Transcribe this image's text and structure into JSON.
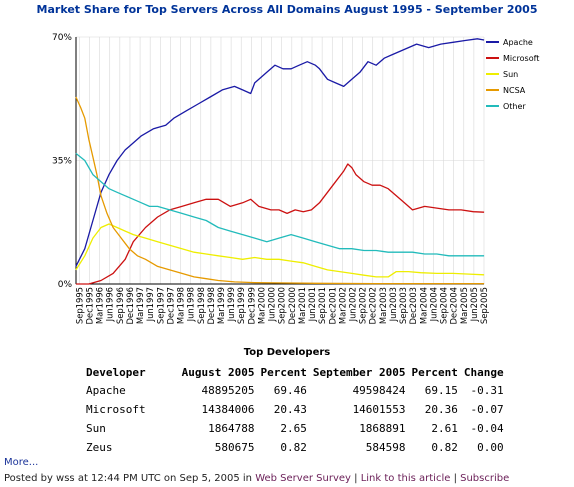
{
  "chart_data": {
    "type": "line",
    "title": "Market Share for Top Servers Across All Domains August 1995 - September 2005",
    "xlabel": "",
    "ylabel": "",
    "ylim": [
      0,
      70
    ],
    "yticks": [
      "0%",
      "35%",
      "70%"
    ],
    "ytick_values": [
      0,
      35,
      70
    ],
    "x_ticks": [
      "Sep1995",
      "Dec1995",
      "Mar1996",
      "Jun1996",
      "Sep1996",
      "Dec1996",
      "Mar1997",
      "Jun1997",
      "Sep1997",
      "Dec1997",
      "Mar1998",
      "Jun1998",
      "Sep1998",
      "Dec1998",
      "Mar1999",
      "Jun1999",
      "Sep1999",
      "Dec1999",
      "Mar2000",
      "Jun2000",
      "Sep2000",
      "Dec2000",
      "Mar2001",
      "Jun2001",
      "Sep2001",
      "Dec2001",
      "Mar2002",
      "Jun2002",
      "Sep2002",
      "Dec2002",
      "Mar2003",
      "Jun2003",
      "Sep2003",
      "Dec2003",
      "Mar2004",
      "Jun2004",
      "Sep2004",
      "Dec2004",
      "Mar2005",
      "Jun2005",
      "Sep2005"
    ],
    "x_start": "Aug1995",
    "grid": true,
    "legend_position": "top-right",
    "series": [
      {
        "name": "Apache",
        "color": "#1a1aa6",
        "values": [
          [
            1995.58,
            5
          ],
          [
            1995.8,
            10
          ],
          [
            1996.0,
            18
          ],
          [
            1996.2,
            26
          ],
          [
            1996.4,
            31
          ],
          [
            1996.6,
            35
          ],
          [
            1996.8,
            38
          ],
          [
            1997.0,
            40
          ],
          [
            1997.2,
            42
          ],
          [
            1997.5,
            44
          ],
          [
            1997.8,
            45
          ],
          [
            1998.0,
            47
          ],
          [
            1998.3,
            49
          ],
          [
            1998.6,
            51
          ],
          [
            1998.9,
            53
          ],
          [
            1999.2,
            55
          ],
          [
            1999.5,
            56
          ],
          [
            1999.7,
            55
          ],
          [
            1999.9,
            54
          ],
          [
            2000.0,
            57
          ],
          [
            2000.3,
            60
          ],
          [
            2000.5,
            62
          ],
          [
            2000.7,
            61
          ],
          [
            2000.9,
            61
          ],
          [
            2001.1,
            62
          ],
          [
            2001.3,
            63
          ],
          [
            2001.5,
            62
          ],
          [
            2001.6,
            61
          ],
          [
            2001.8,
            58
          ],
          [
            2002.0,
            57
          ],
          [
            2002.2,
            56
          ],
          [
            2002.4,
            58
          ],
          [
            2002.6,
            60
          ],
          [
            2002.8,
            63
          ],
          [
            2003.0,
            62
          ],
          [
            2003.2,
            64
          ],
          [
            2003.4,
            65
          ],
          [
            2003.6,
            66
          ],
          [
            2003.8,
            67
          ],
          [
            2004.0,
            68
          ],
          [
            2004.3,
            67
          ],
          [
            2004.6,
            68
          ],
          [
            2004.9,
            68.5
          ],
          [
            2005.2,
            69
          ],
          [
            2005.5,
            69.5
          ],
          [
            2005.67,
            69.15
          ]
        ]
      },
      {
        "name": "Microsoft",
        "color": "#cc1111",
        "values": [
          [
            1995.58,
            0
          ],
          [
            1995.9,
            0
          ],
          [
            1996.2,
            1
          ],
          [
            1996.5,
            3
          ],
          [
            1996.8,
            7
          ],
          [
            1997.0,
            12
          ],
          [
            1997.3,
            16
          ],
          [
            1997.6,
            19
          ],
          [
            1997.9,
            21
          ],
          [
            1998.2,
            22
          ],
          [
            1998.5,
            23
          ],
          [
            1998.8,
            24
          ],
          [
            1999.1,
            24
          ],
          [
            1999.4,
            22
          ],
          [
            1999.7,
            23
          ],
          [
            1999.9,
            24
          ],
          [
            2000.1,
            22
          ],
          [
            2000.4,
            21
          ],
          [
            2000.6,
            21
          ],
          [
            2000.8,
            20
          ],
          [
            2001.0,
            21
          ],
          [
            2001.2,
            20.5
          ],
          [
            2001.4,
            21
          ],
          [
            2001.6,
            23
          ],
          [
            2001.8,
            26
          ],
          [
            2002.0,
            29
          ],
          [
            2002.2,
            32
          ],
          [
            2002.3,
            34
          ],
          [
            2002.4,
            33
          ],
          [
            2002.5,
            31
          ],
          [
            2002.7,
            29
          ],
          [
            2002.9,
            28
          ],
          [
            2003.1,
            28
          ],
          [
            2003.3,
            27
          ],
          [
            2003.5,
            25
          ],
          [
            2003.7,
            23
          ],
          [
            2003.9,
            21
          ],
          [
            2004.2,
            22
          ],
          [
            2004.5,
            21.5
          ],
          [
            2004.8,
            21
          ],
          [
            2005.1,
            21
          ],
          [
            2005.4,
            20.5
          ],
          [
            2005.67,
            20.36
          ]
        ]
      },
      {
        "name": "Sun",
        "color": "#eeee00",
        "values": [
          [
            1995.58,
            4
          ],
          [
            1995.8,
            8
          ],
          [
            1996.0,
            13
          ],
          [
            1996.2,
            16
          ],
          [
            1996.4,
            17
          ],
          [
            1996.6,
            16
          ],
          [
            1996.8,
            15
          ],
          [
            1997.0,
            14
          ],
          [
            1997.3,
            13
          ],
          [
            1997.6,
            12
          ],
          [
            1997.9,
            11
          ],
          [
            1998.2,
            10
          ],
          [
            1998.5,
            9
          ],
          [
            1998.8,
            8.5
          ],
          [
            1999.1,
            8
          ],
          [
            1999.4,
            7.5
          ],
          [
            1999.7,
            7
          ],
          [
            2000.0,
            7.5
          ],
          [
            2000.3,
            7
          ],
          [
            2000.6,
            7
          ],
          [
            2000.9,
            6.5
          ],
          [
            2001.2,
            6
          ],
          [
            2001.5,
            5
          ],
          [
            2001.8,
            4
          ],
          [
            2002.1,
            3.5
          ],
          [
            2002.4,
            3
          ],
          [
            2002.7,
            2.5
          ],
          [
            2003.0,
            2
          ],
          [
            2003.3,
            2
          ],
          [
            2003.5,
            3.5
          ],
          [
            2003.8,
            3.5
          ],
          [
            2004.1,
            3.2
          ],
          [
            2004.5,
            3
          ],
          [
            2004.9,
            3
          ],
          [
            2005.3,
            2.8
          ],
          [
            2005.67,
            2.61
          ]
        ]
      },
      {
        "name": "NCSA",
        "color": "#e69a00",
        "values": [
          [
            1995.58,
            53
          ],
          [
            1995.7,
            50
          ],
          [
            1995.8,
            47
          ],
          [
            1995.9,
            41
          ],
          [
            1996.0,
            36
          ],
          [
            1996.1,
            31
          ],
          [
            1996.2,
            25
          ],
          [
            1996.35,
            20
          ],
          [
            1996.5,
            16
          ],
          [
            1996.7,
            13
          ],
          [
            1996.9,
            10
          ],
          [
            1997.1,
            8
          ],
          [
            1997.3,
            7
          ],
          [
            1997.6,
            5
          ],
          [
            1997.9,
            4
          ],
          [
            1998.2,
            3
          ],
          [
            1998.5,
            2
          ],
          [
            1998.8,
            1.5
          ],
          [
            1999.1,
            1
          ],
          [
            1999.5,
            0.6
          ],
          [
            2000.0,
            0.4
          ],
          [
            2000.5,
            0.3
          ],
          [
            2001.5,
            0.2
          ],
          [
            2003.0,
            0.1
          ],
          [
            2005.67,
            0.1
          ]
        ]
      },
      {
        "name": "Other",
        "color": "#22bbbb",
        "values": [
          [
            1995.58,
            37
          ],
          [
            1995.8,
            35
          ],
          [
            1996.0,
            31
          ],
          [
            1996.2,
            29
          ],
          [
            1996.4,
            27
          ],
          [
            1996.6,
            26
          ],
          [
            1996.8,
            25
          ],
          [
            1997.0,
            24
          ],
          [
            1997.2,
            23
          ],
          [
            1997.4,
            22
          ],
          [
            1997.6,
            22
          ],
          [
            1997.9,
            21
          ],
          [
            1998.2,
            20
          ],
          [
            1998.5,
            19
          ],
          [
            1998.8,
            18
          ],
          [
            1999.1,
            16
          ],
          [
            1999.4,
            15
          ],
          [
            1999.7,
            14
          ],
          [
            2000.0,
            13
          ],
          [
            2000.3,
            12
          ],
          [
            2000.6,
            13
          ],
          [
            2000.9,
            14
          ],
          [
            2001.2,
            13
          ],
          [
            2001.5,
            12
          ],
          [
            2001.8,
            11
          ],
          [
            2002.1,
            10
          ],
          [
            2002.4,
            10
          ],
          [
            2002.7,
            9.5
          ],
          [
            2003.0,
            9.5
          ],
          [
            2003.3,
            9
          ],
          [
            2003.6,
            9
          ],
          [
            2003.9,
            9
          ],
          [
            2004.2,
            8.5
          ],
          [
            2004.5,
            8.5
          ],
          [
            2004.8,
            8
          ],
          [
            2005.1,
            8
          ],
          [
            2005.4,
            8
          ],
          [
            2005.67,
            8
          ]
        ]
      }
    ]
  },
  "developers": {
    "heading": "Top Developers",
    "columns": [
      "Developer",
      "August 2005",
      "Percent",
      "September 2005",
      "Percent",
      "Change"
    ],
    "rows": [
      [
        "Apache",
        "48895205",
        "69.46",
        "49598424",
        "69.15",
        "-0.31"
      ],
      [
        "Microsoft",
        "14384006",
        "20.43",
        "14601553",
        "20.36",
        "-0.07"
      ],
      [
        "Sun",
        "1864788",
        "2.65",
        "1868891",
        "2.61",
        "-0.04"
      ],
      [
        "Zeus",
        "580675",
        "0.82",
        "584598",
        "0.82",
        "0.00"
      ]
    ]
  },
  "more_link": "More...",
  "footer": {
    "posted_by": "Posted by wss at 12:44 PM UTC on Sep 5, 2005 in",
    "category_link": "Web Server Survey",
    "sep1": "|",
    "article_link": "Link to this article",
    "sep2": "|",
    "subscribe_link": "Subscribe"
  }
}
